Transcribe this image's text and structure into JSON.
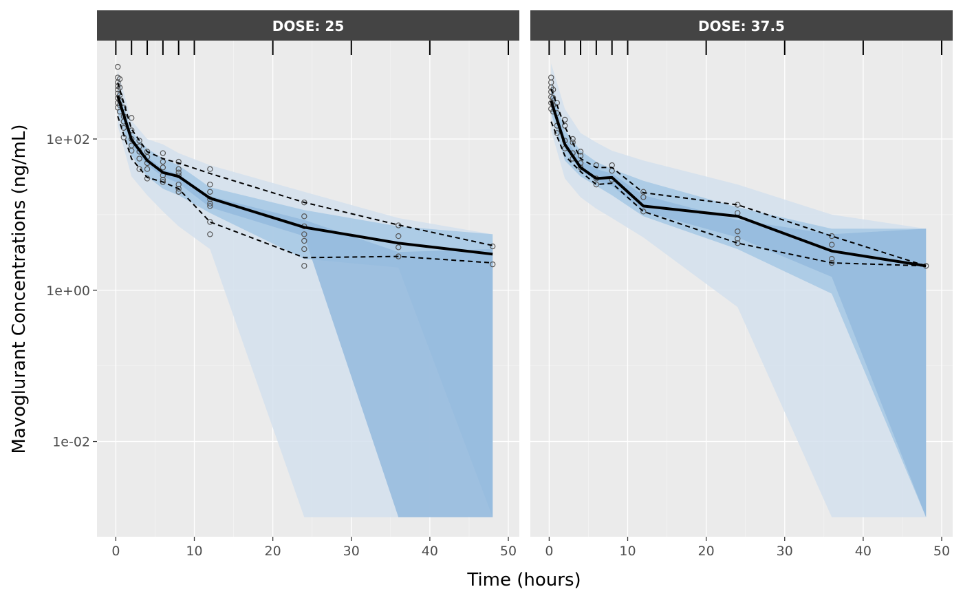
{
  "chart_data": {
    "type": "line",
    "xlabel": "Time (hours)",
    "ylabel": "Mavoglurant Concentrations (ng/mL)",
    "x_ticks": [
      0,
      10,
      20,
      30,
      40,
      50
    ],
    "x_tick_labels": [
      "0",
      "10",
      "20",
      "30",
      "40",
      "50"
    ],
    "xlim": [
      -2.4,
      51.4
    ],
    "y_scale": "log10",
    "y_ticks": [
      100,
      1,
      0.01
    ],
    "y_tick_labels": [
      "1e+02",
      "1e+00",
      "1e-02"
    ],
    "ylim": [
      0.00055,
      2000
    ],
    "grid": true,
    "rug_ticks_x": [
      0,
      2,
      4,
      6,
      8,
      10,
      20,
      30,
      40,
      50
    ],
    "colors": {
      "panel_bg": "#ebebeb",
      "strip_bg": "#444444",
      "grid_major": "#ffffff",
      "band_outer": "#d3e1ed",
      "band_inner": "#a6c8e4",
      "band_median": "#94badd",
      "median_line": "#000000",
      "observed_points": "#555555"
    },
    "panels": [
      {
        "strip_label": "DOSE: 25",
        "time_bins": [
          0.25,
          2,
          4,
          6,
          8,
          12,
          24,
          36,
          48
        ],
        "observed_median": [
          370,
          98,
          52,
          36,
          32,
          16.5,
          6.8,
          4.2,
          3.0
        ],
        "observed_p05": [
          200,
          55,
          31,
          27,
          22,
          8.0,
          2.7,
          2.8,
          2.3
        ],
        "observed_p95": [
          560,
          135,
          68,
          55,
          48,
          35,
          14.5,
          7.3,
          3.9
        ],
        "pi_outer_low": [
          150,
          32,
          18,
          11,
          7,
          3.5,
          0.001,
          0.001,
          0.001
        ],
        "pi_outer_high": [
          800,
          175,
          100,
          85,
          65,
          45,
          20,
          9,
          5.5
        ],
        "pi_inner_low": [
          220,
          60,
          32,
          22,
          18,
          10.5,
          2.6,
          2.0,
          0.001
        ],
        "pi_inner_high": [
          520,
          125,
          75,
          55,
          45,
          23,
          11.5,
          7.0,
          5.5
        ],
        "pi_median_low": [
          300,
          85,
          45,
          32,
          26,
          12.5,
          5.2,
          0.001,
          0.001
        ],
        "pi_median_high": [
          420,
          105,
          58,
          40,
          34,
          17.5,
          8.5,
          3.2,
          3.5
        ],
        "points": [
          {
            "x": 0.25,
            "y": [
              900,
              650,
              560,
              500,
              450,
              400,
              350,
              300,
              260
            ]
          },
          {
            "x": 0.5,
            "y": [
              620,
              480,
              380,
              320,
              280,
              230
            ]
          },
          {
            "x": 1,
            "y": [
              260,
              200,
              170,
              140,
              105
            ]
          },
          {
            "x": 2,
            "y": [
              190,
              130,
              100,
              82,
              70
            ]
          },
          {
            "x": 3,
            "y": [
              95,
              80,
              68,
              55,
              40
            ]
          },
          {
            "x": 4,
            "y": [
              68,
              58,
              48,
              40,
              30
            ]
          },
          {
            "x": 6,
            "y": [
              65,
              50,
              42,
              33,
              29,
              27
            ]
          },
          {
            "x": 8,
            "y": [
              50,
              40,
              36,
              33,
              25,
              22,
              20
            ]
          },
          {
            "x": 12,
            "y": [
              40,
              25,
              20,
              16,
              14,
              13,
              8,
              5.5
            ]
          },
          {
            "x": 24,
            "y": [
              14.5,
              9.5,
              7,
              5.5,
              4.5,
              3.5,
              2.1
            ]
          },
          {
            "x": 36,
            "y": [
              7.2,
              5.2,
              3.7,
              2.8
            ]
          },
          {
            "x": 48,
            "y": [
              3.8,
              2.2
            ]
          }
        ]
      },
      {
        "strip_label": "DOSE: 37.5",
        "time_bins": [
          0.25,
          2,
          4,
          6,
          8,
          12,
          24,
          36,
          48
        ],
        "observed_median": [
          320,
          85,
          42,
          30,
          31,
          13,
          9.5,
          3.3,
          2.1
        ],
        "observed_p05": [
          170,
          60,
          37,
          25,
          26,
          11,
          4.2,
          2.3,
          2.1
        ],
        "observed_p95": [
          460,
          145,
          55,
          42,
          42,
          19.5,
          13.5,
          5.2,
          2.1
        ],
        "pi_outer_low": [
          130,
          30,
          17,
          12,
          9,
          5,
          0.6,
          0.001,
          0.001
        ],
        "pi_outer_high": [
          1000,
          250,
          120,
          90,
          70,
          52,
          25,
          10,
          6.5
        ],
        "pi_inner_low": [
          220,
          52,
          32,
          24,
          18,
          9.5,
          3.5,
          0.9,
          0.001
        ],
        "pi_inner_high": [
          560,
          130,
          70,
          50,
          40,
          28,
          12.5,
          6.5,
          6.5
        ],
        "pi_median_low": [
          280,
          75,
          38,
          28,
          24,
          11,
          5.0,
          1.5,
          0.001
        ],
        "pi_median_high": [
          420,
          105,
          52,
          40,
          35,
          18,
          8.5,
          5.5,
          6.5
        ],
        "points": [
          {
            "x": 0.25,
            "y": [
              650,
              560,
              480,
              420,
              360,
              300,
              250
            ]
          },
          {
            "x": 0.5,
            "y": [
              450,
              350,
              280,
              230
            ]
          },
          {
            "x": 1,
            "y": [
              300,
              220,
              150,
              120
            ]
          },
          {
            "x": 2,
            "y": [
              180,
              150,
              95,
              75
            ]
          },
          {
            "x": 3,
            "y": [
              100,
              90,
              65,
              55
            ]
          },
          {
            "x": 4,
            "y": [
              68,
              60,
              48,
              42
            ]
          },
          {
            "x": 6,
            "y": [
              45,
              30,
              25
            ]
          },
          {
            "x": 8,
            "y": [
              45,
              38,
              29
            ]
          },
          {
            "x": 12,
            "y": [
              20,
              17,
              11
            ]
          },
          {
            "x": 24,
            "y": [
              13.5,
              10.5,
              6,
              4.8,
              4.2
            ]
          },
          {
            "x": 36,
            "y": [
              5.2,
              4.0,
              2.6,
              2.3
            ]
          },
          {
            "x": 48,
            "y": [
              2.1
            ]
          }
        ]
      }
    ]
  }
}
